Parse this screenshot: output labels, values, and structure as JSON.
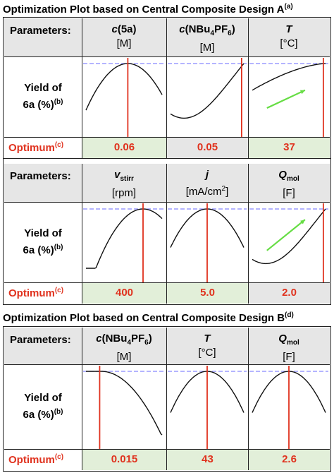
{
  "colors": {
    "optimum_red": "#e0321e",
    "header_gray": "#e6e6e6",
    "optimum_green": "#e2efd9",
    "arrow_green": "#66dd44",
    "max_line_blue": "#8888ff"
  },
  "labels": {
    "parameters": "Parameters:",
    "yield_line1": "Yield of",
    "yield_line2": "6a (%)",
    "yield_sup": "(b)",
    "optimum": "Optimum",
    "optimum_sup": "(c)"
  },
  "titles": {
    "designA": "Optimization Plot based on Central Composite Design A",
    "designA_sup": "(a)",
    "designB": "Optimization Plot based on Central Composite Design B",
    "designB_sup": "(d)"
  },
  "chart_data": [
    {
      "type": "line",
      "design": "A",
      "columns": [
        {
          "param": "c",
          "param_suffix": "(5a)",
          "unit": "[M]",
          "optimum": "0.06",
          "curve": "concave-peak",
          "trend_arrow": false
        },
        {
          "param": "c",
          "param_suffix": "(NBu",
          "param_sub": "4",
          "param_suffix2": "PF",
          "param_sub2": "6",
          "param_end": ")",
          "unit": "[M]",
          "optimum": "0.05",
          "curve": "convex-rising",
          "trend_arrow": false
        },
        {
          "param": "T",
          "unit": "[°C]",
          "optimum": "37",
          "curve": "monotonic-rising",
          "trend_arrow": true
        }
      ]
    },
    {
      "type": "line",
      "design": "A",
      "columns": [
        {
          "param": "v",
          "param_sub": "stirr",
          "unit": "[rpm]",
          "optimum": "400",
          "curve": "concave-peak",
          "trend_arrow": false
        },
        {
          "param": "j",
          "unit": "[mA/cm",
          "unit_sup": "2",
          "unit_end": "]",
          "optimum": "5.0",
          "curve": "concave-peak",
          "trend_arrow": false
        },
        {
          "param": "Q",
          "param_sub": "mol",
          "unit": "[F]",
          "optimum": "2.0",
          "curve": "convex-rising",
          "trend_arrow": true
        }
      ]
    },
    {
      "type": "line",
      "design": "B",
      "columns": [
        {
          "param": "c",
          "param_suffix": "(NBu",
          "param_sub": "4",
          "param_suffix2": "PF",
          "param_sub2": "6",
          "param_end": ")",
          "unit": "[M]",
          "optimum": "0.015",
          "curve": "flat-then-falling",
          "trend_arrow": false
        },
        {
          "param": "T",
          "unit": "[°C]",
          "optimum": "43",
          "curve": "concave-peak",
          "trend_arrow": false
        },
        {
          "param": "Q",
          "param_sub": "mol",
          "unit": "[F]",
          "optimum": "2.6",
          "curve": "concave-peak",
          "trend_arrow": false
        }
      ]
    }
  ]
}
